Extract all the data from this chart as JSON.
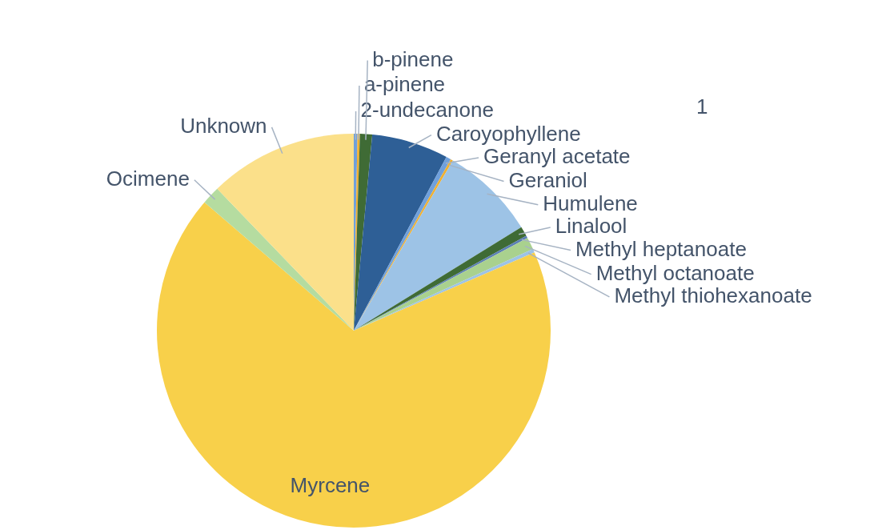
{
  "chart_data": {
    "type": "pie",
    "categories": [
      "2-undecanone",
      "a-pinene",
      "b-pinene",
      "Caroyophyllene",
      "Geranyl acetate",
      "Geraniol",
      "Humulene",
      "Linalool",
      "Methyl heptanoate",
      "Methyl octanoate",
      "Methyl thiohexanoate",
      "Myrcene",
      "Ocimene",
      "Unknown"
    ],
    "values": [
      0.3,
      0.2,
      1.0,
      6.3,
      0.4,
      0.2,
      7.8,
      0.8,
      0.2,
      1.0,
      0.3,
      67.8,
      1.5,
      12.2
    ],
    "colors": [
      "#6fa0dc",
      "#f0b030",
      "#3f6b35",
      "#2e5f96",
      "#6fa0dc",
      "#f0b030",
      "#9dc3e6",
      "#3f6b35",
      "#5b7fb5",
      "#a9d18e",
      "#9dc3e6",
      "#f8d04a",
      "#b5dca0",
      "#fbe08a"
    ],
    "annotations": [
      "1"
    ],
    "legend": false
  }
}
